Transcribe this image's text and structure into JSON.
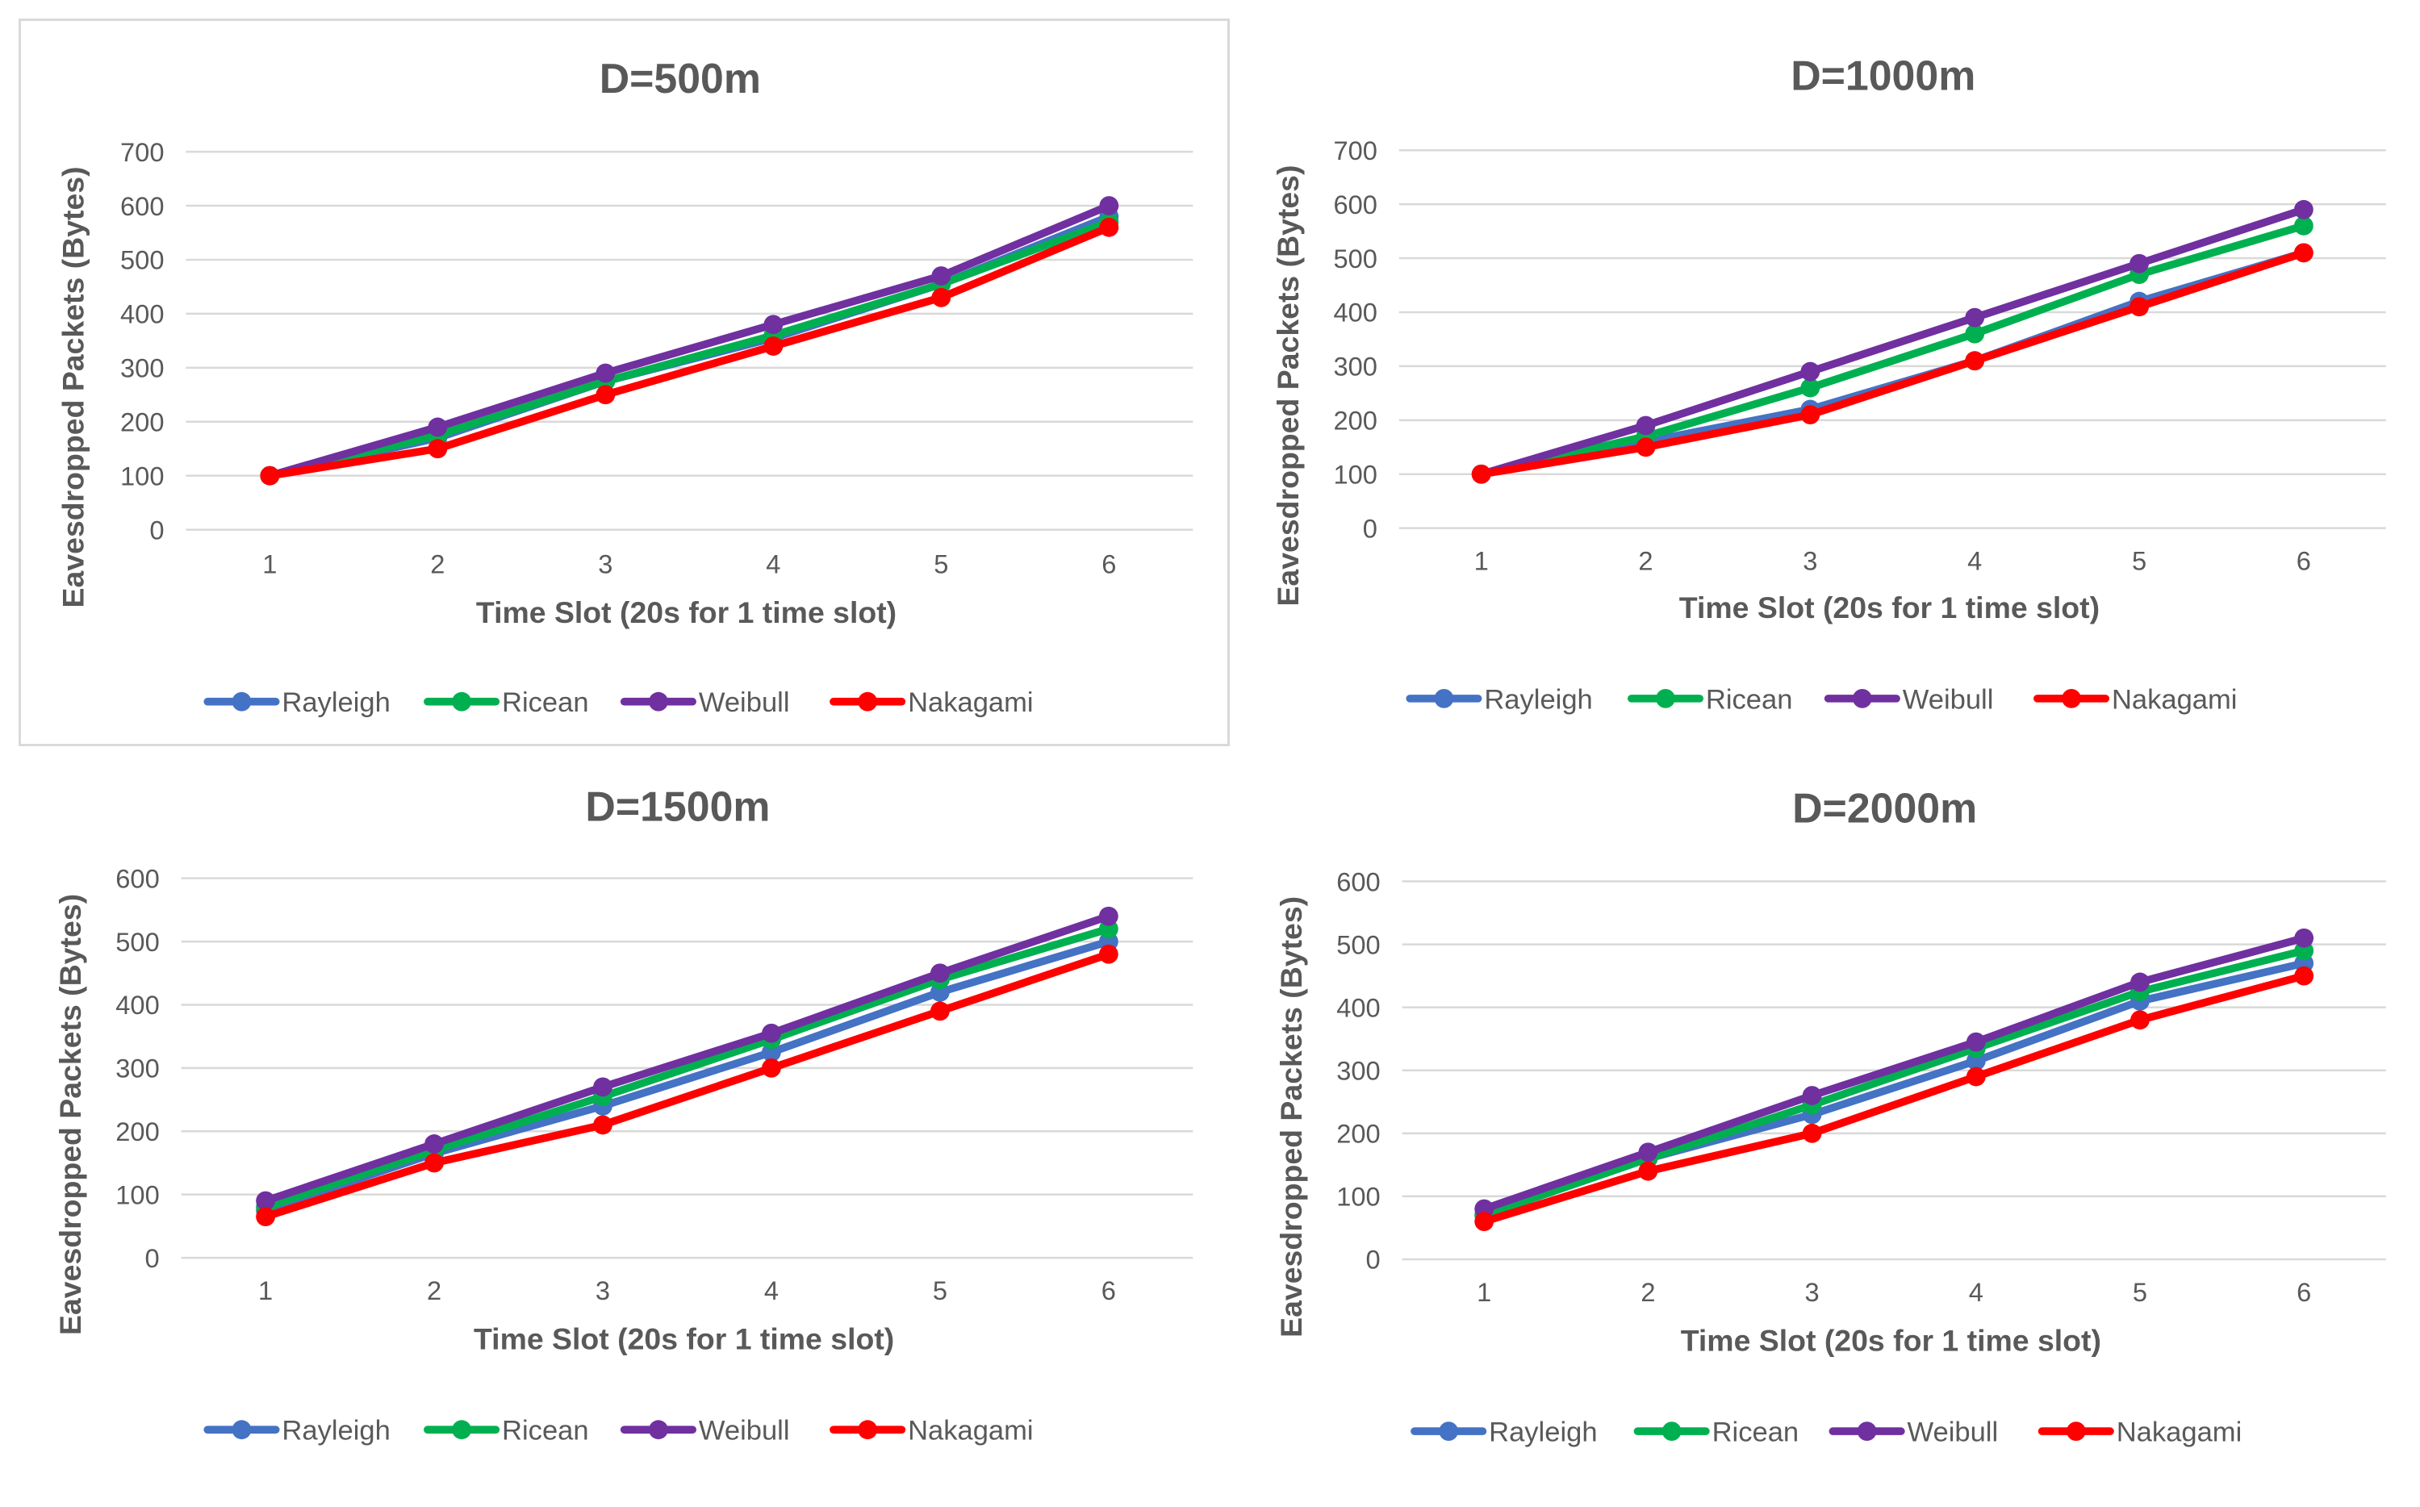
{
  "chart_data": [
    {
      "type": "line",
      "title": "D=500m",
      "xlabel": "Time Slot (20s for 1 time slot)",
      "ylabel": "Eavesdropped Packets (Bytes)",
      "categories": [
        "1",
        "2",
        "3",
        "4",
        "5",
        "6"
      ],
      "ylim": [
        0,
        700
      ],
      "yticks": [
        0,
        100,
        200,
        300,
        400,
        500,
        600,
        700
      ],
      "grid": true,
      "legend": "bottom",
      "series": [
        {
          "name": "Rayleigh",
          "color": "#4472c4",
          "values": [
            100,
            170,
            275,
            355,
            455,
            580
          ]
        },
        {
          "name": "Ricean",
          "color": "#00b050",
          "values": [
            100,
            175,
            275,
            360,
            455,
            570
          ]
        },
        {
          "name": "Weibull",
          "color": "#7030a0",
          "values": [
            100,
            190,
            290,
            380,
            470,
            600
          ]
        },
        {
          "name": "Nakagami",
          "color": "#ff0000",
          "values": [
            100,
            150,
            250,
            340,
            430,
            560
          ]
        }
      ]
    },
    {
      "type": "line",
      "title": "D=1000m",
      "xlabel": "Time Slot (20s for 1 time slot)",
      "ylabel": "Eavesdropped Packets (Bytes)",
      "categories": [
        "1",
        "2",
        "3",
        "4",
        "5",
        "6"
      ],
      "ylim": [
        0,
        700
      ],
      "yticks": [
        0,
        100,
        200,
        300,
        400,
        500,
        600,
        700
      ],
      "grid": true,
      "legend": "bottom",
      "series": [
        {
          "name": "Rayleigh",
          "color": "#4472c4",
          "values": [
            100,
            160,
            220,
            310,
            420,
            510
          ]
        },
        {
          "name": "Ricean",
          "color": "#00b050",
          "values": [
            100,
            170,
            260,
            360,
            470,
            560
          ]
        },
        {
          "name": "Weibull",
          "color": "#7030a0",
          "values": [
            100,
            190,
            290,
            390,
            490,
            590
          ]
        },
        {
          "name": "Nakagami",
          "color": "#ff0000",
          "values": [
            100,
            150,
            210,
            310,
            410,
            510
          ]
        }
      ]
    },
    {
      "type": "line",
      "title": "D=1500m",
      "xlabel": "Time Slot (20s for 1 time slot)",
      "ylabel": "Eavesdropped Packets (Bytes)",
      "categories": [
        "1",
        "2",
        "3",
        "4",
        "5",
        "6"
      ],
      "ylim": [
        0,
        600
      ],
      "yticks": [
        0,
        100,
        200,
        300,
        400,
        500,
        600
      ],
      "grid": true,
      "legend": "bottom",
      "series": [
        {
          "name": "Rayleigh",
          "color": "#4472c4",
          "values": [
            75,
            165,
            240,
            325,
            420,
            500
          ]
        },
        {
          "name": "Ricean",
          "color": "#00b050",
          "values": [
            80,
            170,
            255,
            345,
            440,
            520
          ]
        },
        {
          "name": "Weibull",
          "color": "#7030a0",
          "values": [
            90,
            180,
            270,
            355,
            450,
            540
          ]
        },
        {
          "name": "Nakagami",
          "color": "#ff0000",
          "values": [
            65,
            150,
            210,
            300,
            390,
            480
          ]
        }
      ]
    },
    {
      "type": "line",
      "title": "D=2000m",
      "xlabel": "Time Slot (20s for 1 time slot)",
      "ylabel": "Eavesdropped Packets (Bytes)",
      "categories": [
        "1",
        "2",
        "3",
        "4",
        "5",
        "6"
      ],
      "ylim": [
        0,
        600
      ],
      "yticks": [
        0,
        100,
        200,
        300,
        400,
        500,
        600
      ],
      "grid": true,
      "legend": "bottom",
      "series": [
        {
          "name": "Rayleigh",
          "color": "#4472c4",
          "values": [
            70,
            160,
            230,
            315,
            410,
            470
          ]
        },
        {
          "name": "Ricean",
          "color": "#00b050",
          "values": [
            70,
            160,
            245,
            335,
            425,
            490
          ]
        },
        {
          "name": "Weibull",
          "color": "#7030a0",
          "values": [
            80,
            170,
            260,
            345,
            440,
            510
          ]
        },
        {
          "name": "Nakagami",
          "color": "#ff0000",
          "values": [
            60,
            140,
            200,
            290,
            380,
            450
          ]
        }
      ]
    }
  ]
}
